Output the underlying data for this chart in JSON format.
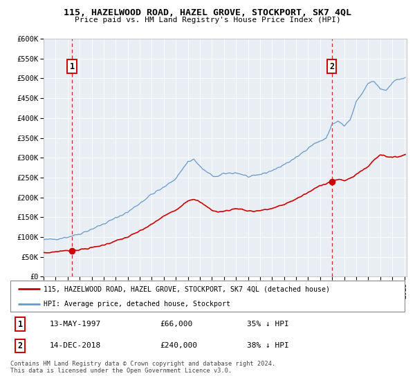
{
  "title": "115, HAZELWOOD ROAD, HAZEL GROVE, STOCKPORT, SK7 4QL",
  "subtitle": "Price paid vs. HM Land Registry's House Price Index (HPI)",
  "legend_label_red": "115, HAZELWOOD ROAD, HAZEL GROVE, STOCKPORT, SK7 4QL (detached house)",
  "legend_label_blue": "HPI: Average price, detached house, Stockport",
  "annotation1_date": "13-MAY-1997",
  "annotation1_price": "£66,000",
  "annotation1_hpi": "35% ↓ HPI",
  "annotation1_year": 1997.36,
  "annotation1_value": 66000,
  "annotation2_date": "14-DEC-2018",
  "annotation2_price": "£240,000",
  "annotation2_hpi": "38% ↓ HPI",
  "annotation2_year": 2018.96,
  "annotation2_value": 240000,
  "footer": "Contains HM Land Registry data © Crown copyright and database right 2024.\nThis data is licensed under the Open Government Licence v3.0.",
  "ylim": [
    0,
    600000
  ],
  "yticks": [
    0,
    50000,
    100000,
    150000,
    200000,
    250000,
    300000,
    350000,
    400000,
    450000,
    500000,
    550000,
    600000
  ],
  "ytick_labels": [
    "£0",
    "£50K",
    "£100K",
    "£150K",
    "£200K",
    "£250K",
    "£300K",
    "£350K",
    "£400K",
    "£450K",
    "£500K",
    "£550K",
    "£600K"
  ],
  "red_color": "#cc0000",
  "blue_color": "#6699cc",
  "plot_bg": "#e8eef4",
  "grid_color": "#ffffff"
}
